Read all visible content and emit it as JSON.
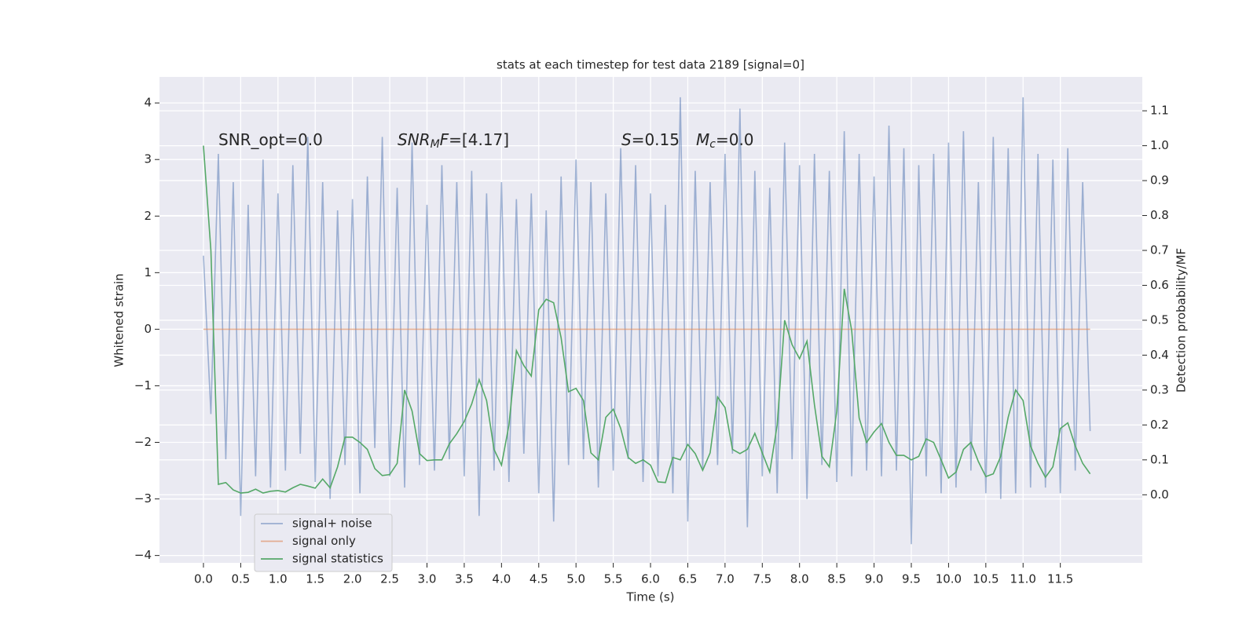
{
  "chart_data": {
    "type": "line",
    "title": "stats at each timestep for test data 2189 [signal=0]",
    "xlabel": "Time (s)",
    "ylabel": "Whitened strain",
    "y2label": "Detection probability/MF",
    "xlim": [
      -0.59,
      12.6
    ],
    "ylim": [
      -4.13,
      4.46
    ],
    "y2lim": [
      -0.195,
      1.197
    ],
    "grid": true,
    "legend": "lower left",
    "xticks": [
      {
        "value": 0,
        "label": "0.0"
      },
      {
        "value": 0.5,
        "label": "0.5"
      },
      {
        "value": 1,
        "label": "1.0"
      },
      {
        "value": 1.5,
        "label": "1.5"
      },
      {
        "value": 2,
        "label": "2.0"
      },
      {
        "value": 2.5,
        "label": "2.5"
      },
      {
        "value": 3,
        "label": "3.0"
      },
      {
        "value": 3.5,
        "label": "3.5"
      },
      {
        "value": 4,
        "label": "4.0"
      },
      {
        "value": 4.5,
        "label": "4.5"
      },
      {
        "value": 5,
        "label": "5.0"
      },
      {
        "value": 5.5,
        "label": "5.5"
      },
      {
        "value": 6,
        "label": "6.0"
      },
      {
        "value": 6.5,
        "label": "6.5"
      },
      {
        "value": 7,
        "label": "7.0"
      },
      {
        "value": 7.5,
        "label": "7.5"
      },
      {
        "value": 8,
        "label": "8.0"
      },
      {
        "value": 8.5,
        "label": "8.5"
      },
      {
        "value": 9,
        "label": "9.0"
      },
      {
        "value": 9.5,
        "label": "9.5"
      },
      {
        "value": 10,
        "label": "10.0"
      },
      {
        "value": 10.5,
        "label": "10.5"
      },
      {
        "value": 11,
        "label": "11.0"
      },
      {
        "value": 11.5,
        "label": "11.5"
      }
    ],
    "yticks": [
      {
        "value": -4,
        "label": "−4"
      },
      {
        "value": -3,
        "label": "−3"
      },
      {
        "value": -2,
        "label": "−2"
      },
      {
        "value": -1,
        "label": "−1"
      },
      0,
      1,
      2,
      3,
      4
    ],
    "y2ticks": [
      {
        "value": 0,
        "label": "0.0"
      },
      {
        "value": 0.1,
        "label": "0.1"
      },
      {
        "value": 0.2,
        "label": "0.2"
      },
      {
        "value": 0.3,
        "label": "0.3"
      },
      {
        "value": 0.4,
        "label": "0.4"
      },
      {
        "value": 0.5,
        "label": "0.5"
      },
      {
        "value": 0.6,
        "label": "0.6"
      },
      {
        "value": 0.7,
        "label": "0.7"
      },
      {
        "value": 0.8,
        "label": "0.8"
      },
      {
        "value": 0.9,
        "label": "0.9"
      },
      {
        "value": 1,
        "label": "1.0"
      },
      {
        "value": 1.1,
        "label": "1.1"
      }
    ],
    "annotations": [
      [
        {
          "text": "SNR_opt=0.0",
          "style": "normal"
        }
      ],
      [
        {
          "text": "SNR",
          "style": "italic"
        },
        {
          "text": "M",
          "style": "sub"
        },
        {
          "text": "F",
          "style": "italic"
        },
        {
          "text": "=[4.17]",
          "style": "normal"
        }
      ],
      [
        {
          "text": "S",
          "style": "italic"
        },
        {
          "text": "=0.15",
          "style": "normal"
        }
      ],
      [
        {
          "text": "M",
          "style": "italic"
        },
        {
          "text": "c",
          "style": "sub"
        },
        {
          "text": "=0.0",
          "style": "normal"
        }
      ]
    ],
    "x": [
      0,
      0.1,
      0.2,
      0.3,
      0.4,
      0.5,
      0.6,
      0.7,
      0.8,
      0.9,
      1,
      1.1,
      1.2,
      1.3,
      1.4,
      1.5,
      1.6,
      1.7,
      1.8,
      1.9,
      2,
      2.1,
      2.2,
      2.3,
      2.4,
      2.5,
      2.6,
      2.7,
      2.8,
      2.9,
      3,
      3.1,
      3.2,
      3.3,
      3.4,
      3.5,
      3.6,
      3.7,
      3.8,
      3.9,
      4,
      4.1,
      4.2,
      4.3,
      4.4,
      4.5,
      4.6,
      4.7,
      4.8,
      4.9,
      5,
      5.1,
      5.2,
      5.3,
      5.4,
      5.5,
      5.6,
      5.7,
      5.8,
      5.9,
      6,
      6.1,
      6.2,
      6.3,
      6.4,
      6.5,
      6.6,
      6.7,
      6.8,
      6.9,
      7,
      7.1,
      7.2,
      7.3,
      7.4,
      7.5,
      7.6,
      7.7,
      7.8,
      7.9,
      8,
      8.1,
      8.2,
      8.3,
      8.4,
      8.5,
      8.6,
      8.7,
      8.8,
      8.9,
      9,
      9.1,
      9.2,
      9.3,
      9.4,
      9.5,
      9.6,
      9.7,
      9.8,
      9.9,
      10,
      10.1,
      10.2,
      10.3,
      10.4,
      10.5,
      10.6,
      10.7,
      10.8,
      10.9,
      11,
      11.1,
      11.2,
      11.3,
      11.4,
      11.5,
      11.6,
      11.7,
      11.8,
      11.9
    ],
    "series": [
      {
        "name": "signal+ noise",
        "color": "#4c72b0",
        "alpha": 0.5,
        "values": [
          1.3,
          -1.5,
          3.1,
          -2.3,
          2.6,
          -3.3,
          2.2,
          -2.6,
          3.0,
          -2.8,
          2.4,
          -2.5,
          2.9,
          -2.2,
          3.4,
          -2.7,
          2.6,
          -3.0,
          2.1,
          -2.4,
          2.3,
          -2.9,
          2.7,
          -2.1,
          3.4,
          -2.6,
          2.5,
          -2.8,
          3.3,
          -2.4,
          2.2,
          -2.5,
          2.9,
          -2.3,
          2.6,
          -2.6,
          2.8,
          -3.3,
          2.4,
          -2.5,
          2.6,
          -2.7,
          2.3,
          -2.2,
          2.4,
          -2.9,
          2.1,
          -3.4,
          2.7,
          -2.4,
          3.0,
          -2.3,
          2.6,
          -2.8,
          2.4,
          -2.5,
          3.2,
          -2.3,
          2.9,
          -2.7,
          2.4,
          -2.6,
          2.2,
          -2.9,
          4.1,
          -3.4,
          2.8,
          -2.5,
          2.6,
          -2.4,
          3.1,
          -2.2,
          3.9,
          -3.5,
          2.8,
          -2.6,
          2.5,
          -2.9,
          3.3,
          -2.3,
          2.9,
          -3.0,
          3.1,
          -2.4,
          2.8,
          -2.7,
          3.5,
          -2.6,
          3.1,
          -2.5,
          2.7,
          -2.6,
          3.6,
          -2.5,
          3.2,
          -3.8,
          2.9,
          -2.6,
          3.1,
          -2.9,
          3.3,
          -2.8,
          3.5,
          -2.5,
          2.6,
          -2.9,
          3.4,
          -3.0,
          3.2,
          -2.9,
          4.1,
          -2.8,
          3.1,
          -2.8,
          3.0,
          -2.9,
          3.2,
          -2.5,
          2.6,
          -1.8
        ]
      },
      {
        "name": "signal only",
        "color": "#dd8452",
        "alpha": 0.6,
        "values": [
          0,
          0,
          0,
          0,
          0,
          0,
          0,
          0,
          0,
          0,
          0,
          0,
          0,
          0,
          0,
          0,
          0,
          0,
          0,
          0,
          0,
          0,
          0,
          0,
          0,
          0,
          0,
          0,
          0,
          0,
          0,
          0,
          0,
          0,
          0,
          0,
          0,
          0,
          0,
          0,
          0,
          0,
          0,
          0,
          0,
          0,
          0,
          0,
          0,
          0,
          0,
          0,
          0,
          0,
          0,
          0,
          0,
          0,
          0,
          0,
          0,
          0,
          0,
          0,
          0,
          0,
          0,
          0,
          0,
          0,
          0,
          0,
          0,
          0,
          0,
          0,
          0,
          0,
          0,
          0,
          0,
          0,
          0,
          0,
          0,
          0,
          0,
          0,
          0,
          0,
          0,
          0,
          0,
          0,
          0,
          0,
          0,
          0,
          0,
          0,
          0,
          0,
          0,
          0,
          0,
          0,
          0,
          0,
          0,
          0,
          0,
          0,
          0,
          0,
          0,
          0,
          0,
          0,
          0,
          0
        ]
      },
      {
        "name": "signal statistics",
        "color": "#55a868",
        "alpha": 1,
        "axis": "y2",
        "values": [
          1.0,
          0.7,
          0.03,
          0.035,
          0.014,
          0.005,
          0.007,
          0.016,
          0.005,
          0.01,
          0.012,
          0.008,
          0.02,
          0.03,
          0.025,
          0.019,
          0.045,
          0.02,
          0.08,
          0.165,
          0.165,
          0.15,
          0.13,
          0.075,
          0.055,
          0.058,
          0.09,
          0.3,
          0.24,
          0.118,
          0.098,
          0.1,
          0.1,
          0.146,
          0.175,
          0.21,
          0.26,
          0.33,
          0.27,
          0.13,
          0.085,
          0.2,
          0.413,
          0.37,
          0.34,
          0.53,
          0.56,
          0.55,
          0.45,
          0.295,
          0.305,
          0.27,
          0.12,
          0.1,
          0.222,
          0.245,
          0.19,
          0.107,
          0.09,
          0.1,
          0.085,
          0.037,
          0.035,
          0.107,
          0.1,
          0.144,
          0.118,
          0.07,
          0.12,
          0.28,
          0.25,
          0.13,
          0.118,
          0.13,
          0.176,
          0.12,
          0.065,
          0.2,
          0.5,
          0.43,
          0.39,
          0.44,
          0.258,
          0.11,
          0.08,
          0.24,
          0.59,
          0.47,
          0.22,
          0.15,
          0.18,
          0.204,
          0.15,
          0.113,
          0.113,
          0.1,
          0.11,
          0.16,
          0.15,
          0.1,
          0.048,
          0.065,
          0.13,
          0.15,
          0.095,
          0.052,
          0.06,
          0.11,
          0.222,
          0.3,
          0.27,
          0.14,
          0.09,
          0.05,
          0.08,
          0.19,
          0.206,
          0.14,
          0.09,
          0.06
        ]
      }
    ]
  }
}
